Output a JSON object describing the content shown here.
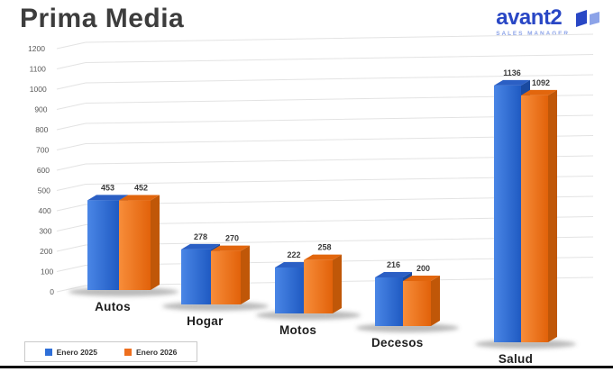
{
  "title": "Prima Media",
  "logo": {
    "brand": "avant2",
    "tagline": "SALES MANAGER",
    "brand_color": "#2947c5",
    "tagline_color": "#8ca3e8",
    "mark_dark": "#2947c5",
    "mark_light": "#8ca3e8"
  },
  "chart_data": {
    "type": "bar",
    "style": "3d-column",
    "title": "Prima Media",
    "categories": [
      "Autos",
      "Hogar",
      "Motos",
      "Decesos",
      "Salud"
    ],
    "series": [
      {
        "name": "Enero 2025",
        "color": "#2e6fd8",
        "values": [
          453,
          278,
          222,
          216,
          1136
        ]
      },
      {
        "name": "Enero 2026",
        "color": "#ee6f1e",
        "values": [
          452,
          270,
          258,
          200,
          1092
        ]
      }
    ],
    "y_ticks": [
      0,
      100,
      200,
      300,
      400,
      500,
      600,
      700,
      800,
      900,
      1000,
      1100,
      1200
    ],
    "ylim": [
      0,
      1200
    ],
    "grid": true,
    "legend_position": "bottom-left",
    "value_labels": true
  }
}
